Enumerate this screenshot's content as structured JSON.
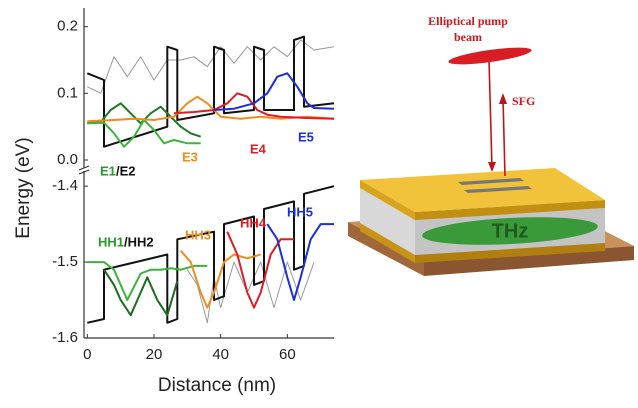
{
  "chart_data": [
    {
      "type": "line",
      "ylabel": "Energy (eV)",
      "xlim": [
        -1,
        74
      ],
      "ylim": [
        -0.012,
        0.228
      ],
      "yticks": [
        {
          "value": 0,
          "label": "0.0"
        },
        0.1,
        0.2
      ],
      "annotations": [
        {
          "text": "E1",
          "color": "#2a9a2a"
        },
        {
          "text": "/E2",
          "color": "#111111"
        },
        {
          "text": "E3",
          "color": "#f08c1e"
        },
        {
          "text": "E4",
          "color": "#e01b24"
        },
        {
          "text": "E5",
          "color": "#1c2fd8"
        }
      ],
      "series": [
        {
          "color": "#999999",
          "x": [
            0,
            4,
            8,
            12,
            16,
            20,
            24,
            28,
            32,
            36,
            40,
            44,
            48,
            52,
            56,
            60,
            64,
            68,
            74
          ],
          "values": [
            0.11,
            0.1,
            0.155,
            0.125,
            0.155,
            0.12,
            0.15,
            0.15,
            0.155,
            0.14,
            0.17,
            0.145,
            0.17,
            0.15,
            0.17,
            0.155,
            0.18,
            0.165,
            0.17
          ]
        },
        {
          "color": "#111111",
          "x": [
            0,
            5,
            5,
            24,
            24,
            27,
            27,
            38,
            38,
            41,
            41,
            50,
            50,
            53,
            53,
            62,
            62,
            65,
            65,
            74
          ],
          "values": [
            0.13,
            0.12,
            0.02,
            0.05,
            0.17,
            0.165,
            0.06,
            0.07,
            0.17,
            0.165,
            0.07,
            0.075,
            0.17,
            0.165,
            0.075,
            0.075,
            0.18,
            0.185,
            0.08,
            0.085
          ]
        },
        {
          "color": "#1e7a1e",
          "x": [
            0,
            4,
            7,
            10,
            13,
            16,
            19,
            22,
            25,
            28,
            31,
            34
          ],
          "values": [
            0.055,
            0.057,
            0.075,
            0.085,
            0.07,
            0.055,
            0.07,
            0.08,
            0.065,
            0.05,
            0.04,
            0.035
          ]
        },
        {
          "color": "#3cb33c",
          "x": [
            0,
            5,
            8,
            11,
            14,
            17,
            20,
            23,
            26,
            30,
            34
          ],
          "values": [
            0.055,
            0.056,
            0.04,
            0.02,
            0.035,
            0.06,
            0.045,
            0.025,
            0.03,
            0.025,
            0.025
          ]
        },
        {
          "color": "#f08c1e",
          "x": [
            0,
            8,
            14,
            20,
            26,
            30,
            33,
            36,
            40,
            46,
            52,
            58,
            66,
            74
          ],
          "values": [
            0.058,
            0.06,
            0.062,
            0.06,
            0.065,
            0.085,
            0.095,
            0.085,
            0.065,
            0.062,
            0.065,
            0.062,
            0.065,
            0.062
          ]
        },
        {
          "color": "#e01b24",
          "x": [
            26,
            32,
            38,
            42,
            45,
            48,
            51,
            54,
            58,
            66,
            74
          ],
          "values": [
            0.07,
            0.072,
            0.075,
            0.085,
            0.1,
            0.095,
            0.075,
            0.068,
            0.065,
            0.063,
            0.062
          ]
        },
        {
          "color": "#1c2fd8",
          "x": [
            38,
            44,
            50,
            54,
            57,
            60,
            63,
            66,
            68,
            74
          ],
          "values": [
            0.075,
            0.077,
            0.085,
            0.1,
            0.125,
            0.13,
            0.11,
            0.085,
            0.078,
            0.077
          ]
        }
      ]
    },
    {
      "type": "line",
      "xlabel": "Distance (nm)",
      "xlim": [
        -1,
        74
      ],
      "ylim": [
        -1.6,
        -1.38
      ],
      "xticks": [
        0,
        20,
        40,
        60
      ],
      "yticks": [
        -1.4,
        -1.5,
        -1.6
      ],
      "annotations": [
        {
          "text": "HH1",
          "color": "#2a9a2a"
        },
        {
          "text": "/HH2",
          "color": "#111111"
        },
        {
          "text": "HH3",
          "color": "#f08c1e"
        },
        {
          "text": "HH4",
          "color": "#e01b24"
        },
        {
          "text": "HH5",
          "color": "#1c2fd8"
        }
      ],
      "series": [
        {
          "color": "#999999",
          "x": [
            30,
            33,
            36,
            38,
            40,
            44,
            48,
            52,
            56,
            60,
            64,
            68
          ],
          "values": [
            -1.51,
            -1.53,
            -1.58,
            -1.52,
            -1.56,
            -1.5,
            -1.54,
            -1.5,
            -1.56,
            -1.5,
            -1.55,
            -1.5
          ]
        },
        {
          "color": "#111111",
          "x": [
            0,
            5,
            5,
            24,
            24,
            27,
            27,
            38,
            38,
            41,
            41,
            50,
            50,
            53,
            53,
            62,
            62,
            65,
            65,
            74
          ],
          "values": [
            -1.58,
            -1.575,
            -1.51,
            -1.49,
            -1.58,
            -1.575,
            -1.47,
            -1.46,
            -1.55,
            -1.545,
            -1.45,
            -1.44,
            -1.53,
            -1.525,
            -1.43,
            -1.42,
            -1.51,
            -1.505,
            -1.41,
            -1.4
          ]
        },
        {
          "color": "#3cb33c",
          "x": [
            0,
            5,
            8,
            12,
            16,
            19,
            22,
            25,
            28,
            32,
            36
          ],
          "values": [
            -1.5,
            -1.5,
            -1.51,
            -1.55,
            -1.515,
            -1.51,
            -1.51,
            -1.508,
            -1.51,
            -1.505,
            -1.505
          ]
        },
        {
          "color": "#1e6a1e",
          "x": [
            5,
            8,
            10,
            13,
            16,
            18,
            21,
            24,
            27
          ],
          "values": [
            -1.51,
            -1.53,
            -1.55,
            -1.57,
            -1.54,
            -1.52,
            -1.55,
            -1.57,
            -1.525
          ]
        },
        {
          "color": "#f08c1e",
          "x": [
            28,
            31,
            34,
            36,
            38,
            41,
            44,
            48,
            52
          ],
          "values": [
            -1.485,
            -1.5,
            -1.54,
            -1.56,
            -1.54,
            -1.5,
            -1.49,
            -1.495,
            -1.49
          ]
        },
        {
          "color": "#e01b24",
          "x": [
            42,
            45,
            48,
            50,
            52,
            55,
            58,
            62
          ],
          "values": [
            -1.46,
            -1.49,
            -1.54,
            -1.56,
            -1.54,
            -1.49,
            -1.47,
            -1.47
          ]
        },
        {
          "color": "#1c2fd8",
          "x": [
            54,
            57,
            60,
            62,
            64,
            67,
            70,
            74
          ],
          "values": [
            -1.45,
            -1.47,
            -1.52,
            -1.55,
            -1.52,
            -1.47,
            -1.45,
            -1.45
          ]
        }
      ]
    }
  ],
  "diagram": {
    "pump_label": [
      "Elliptical pump",
      "beam"
    ],
    "sfg_label": "SFG",
    "thz_label": "THz"
  }
}
